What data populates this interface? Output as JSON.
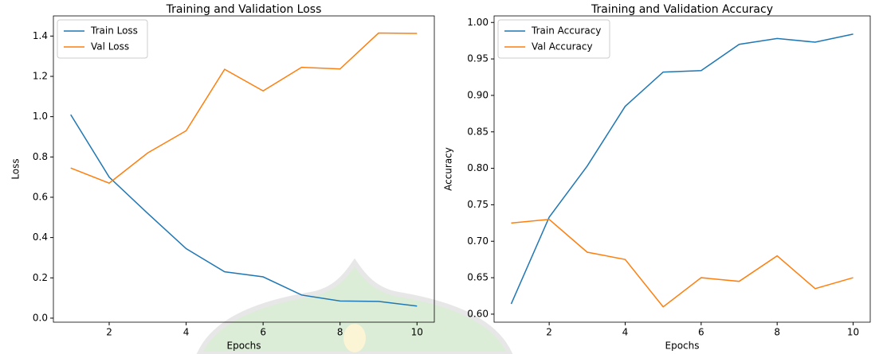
{
  "chart_data": [
    {
      "type": "line",
      "title": "Training and Validation Loss",
      "x_label": "Epochs",
      "y_label": "Loss",
      "x": [
        1,
        2,
        3,
        4,
        5,
        6,
        7,
        8,
        9,
        10
      ],
      "series": [
        {
          "name": "Train Loss",
          "color": "#1f77b4",
          "values": [
            1.01,
            0.7,
            0.52,
            0.345,
            0.23,
            0.205,
            0.115,
            0.085,
            0.083,
            0.06
          ]
        },
        {
          "name": "Val Loss",
          "color": "#ff7f0e",
          "values": [
            0.745,
            0.67,
            0.82,
            0.93,
            1.235,
            1.128,
            1.245,
            1.237,
            1.415,
            1.413
          ]
        }
      ],
      "xlim": [
        0.55,
        10.45
      ],
      "xticks": [
        2,
        4,
        6,
        8,
        10
      ],
      "ylim": [
        -0.02,
        1.5
      ],
      "yticks": [
        {
          "value": 0,
          "label": "0.0"
        },
        0.2,
        0.4,
        0.6,
        0.8,
        {
          "value": 1,
          "label": "1.0"
        },
        1.2,
        1.4
      ],
      "legend": "upper-left"
    },
    {
      "type": "line",
      "title": "Training and Validation Accuracy",
      "x_label": "Epochs",
      "y_label": "Accuracy",
      "x": [
        1,
        2,
        3,
        4,
        5,
        6,
        7,
        8,
        9,
        10
      ],
      "series": [
        {
          "name": "Train Accuracy",
          "color": "#1f77b4",
          "values": [
            0.614,
            0.733,
            0.803,
            0.885,
            0.932,
            0.934,
            0.97,
            0.978,
            0.973,
            0.984
          ]
        },
        {
          "name": "Val Accuracy",
          "color": "#ff7f0e",
          "values": [
            0.725,
            0.73,
            0.685,
            0.675,
            0.61,
            0.65,
            0.645,
            0.68,
            0.635,
            0.65
          ]
        }
      ],
      "xlim": [
        0.55,
        10.45
      ],
      "xticks": [
        2,
        4,
        6,
        8,
        10
      ],
      "ylim": [
        0.589,
        1.009
      ],
      "yticks": [
        {
          "value": 0.6,
          "label": "0.60"
        },
        {
          "value": 0.65,
          "label": "0.65"
        },
        {
          "value": 0.7,
          "label": "0.70"
        },
        {
          "value": 0.75,
          "label": "0.75"
        },
        {
          "value": 0.8,
          "label": "0.80"
        },
        {
          "value": 0.85,
          "label": "0.85"
        },
        {
          "value": 0.9,
          "label": "0.90"
        },
        {
          "value": 0.95,
          "label": "0.95"
        },
        {
          "value": 1,
          "label": "1.00"
        }
      ],
      "legend": "upper-left"
    }
  ]
}
